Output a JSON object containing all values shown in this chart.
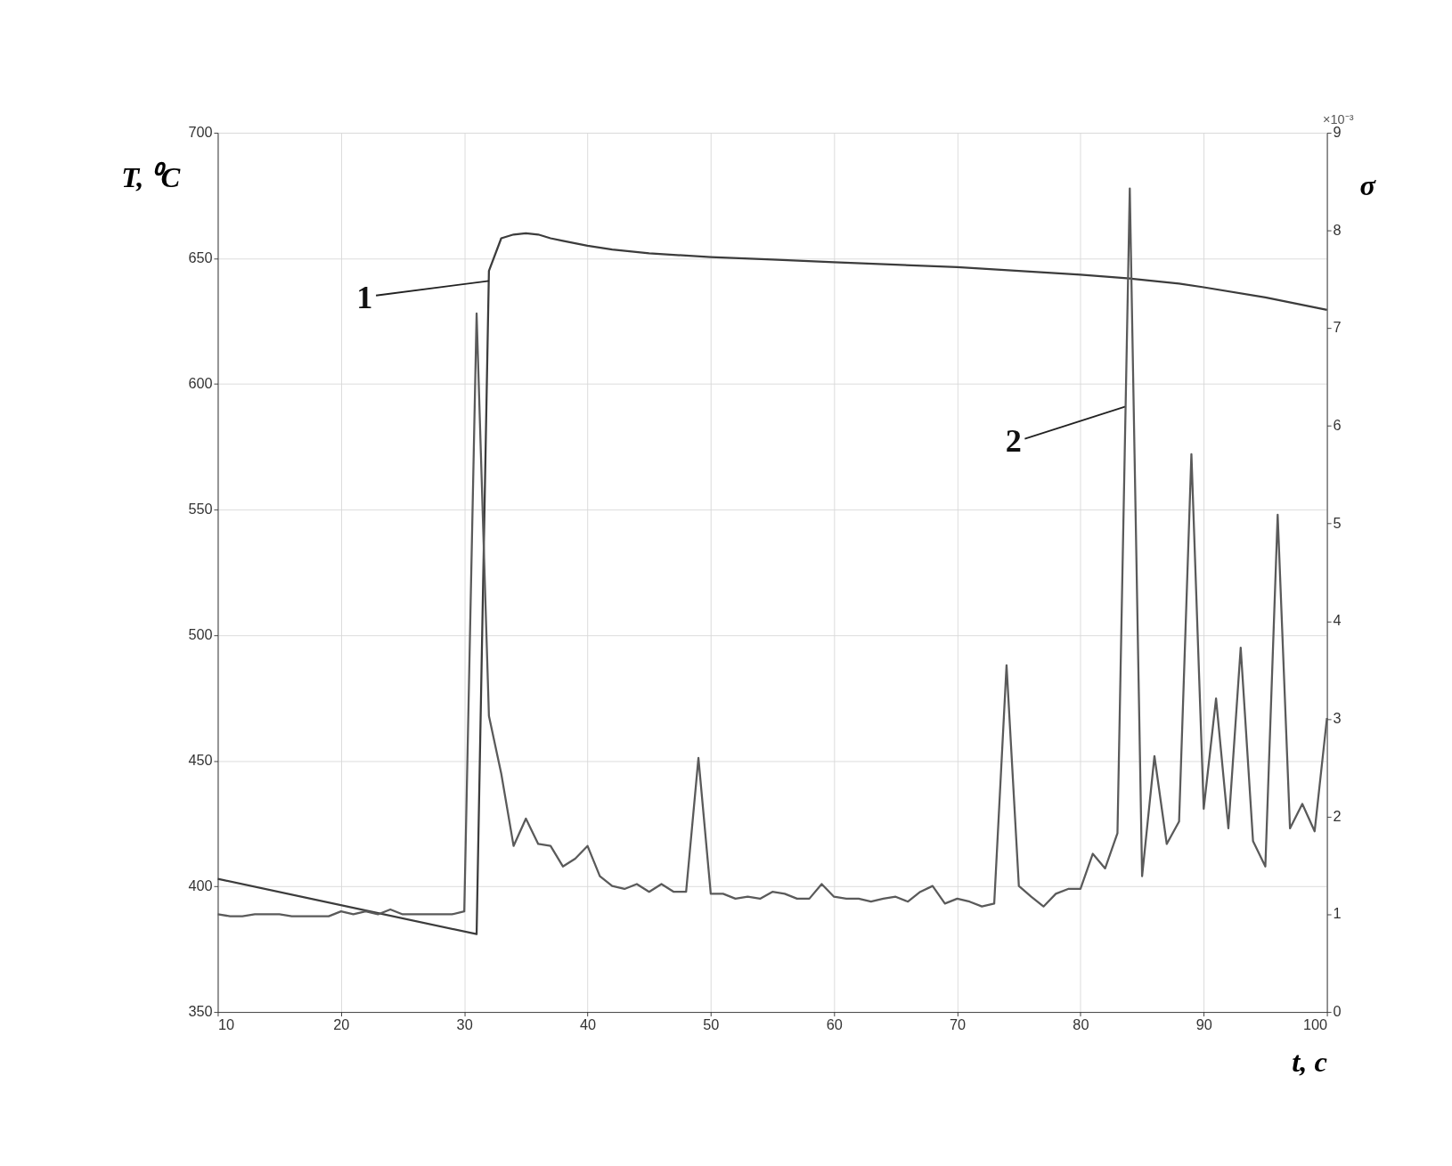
{
  "chart_data": {
    "type": "line",
    "xlabel": "t, c",
    "ylabel": "T, ⁰C",
    "y2label": "σ",
    "x": [
      10,
      11,
      12,
      13,
      14,
      15,
      16,
      17,
      18,
      19,
      20,
      21,
      22,
      23,
      24,
      25,
      26,
      27,
      28,
      29,
      30,
      31,
      32,
      33,
      34,
      35,
      36,
      37,
      38,
      39,
      40,
      41,
      42,
      43,
      44,
      45,
      46,
      47,
      48,
      49,
      50,
      51,
      52,
      53,
      54,
      55,
      56,
      57,
      58,
      59,
      60,
      61,
      62,
      63,
      64,
      65,
      66,
      67,
      68,
      69,
      70,
      71,
      72,
      73,
      74,
      75,
      76,
      77,
      78,
      79,
      80,
      81,
      82,
      83,
      84,
      85,
      86,
      87,
      88,
      89,
      90,
      91,
      92,
      93,
      94,
      95,
      96,
      97,
      98,
      99,
      100
    ],
    "xlim": [
      10,
      100
    ],
    "xticks": [
      10,
      20,
      30,
      40,
      50,
      60,
      70,
      80,
      90,
      100
    ],
    "ylim": [
      350,
      700
    ],
    "yticks": [
      350,
      400,
      450,
      500,
      550,
      600,
      650,
      700
    ],
    "y2lim": [
      0,
      9
    ],
    "y2ticks": [
      0,
      1,
      2,
      3,
      4,
      5,
      6,
      7,
      8,
      9
    ],
    "grid": true,
    "series": [
      {
        "color": "#3c3c3c",
        "x": [
          10,
          31,
          32,
          33,
          34,
          35,
          36,
          37,
          38,
          40,
          42,
          45,
          50,
          55,
          60,
          65,
          70,
          75,
          80,
          84,
          88,
          90,
          95,
          100
        ],
        "values": [
          403,
          381,
          645,
          658,
          659.5,
          660,
          659.5,
          658,
          657,
          655,
          653.5,
          652,
          650.5,
          649.5,
          648.5,
          647.5,
          646.5,
          645,
          643.5,
          642,
          640,
          638.5,
          634.5,
          629.5
        ]
      },
      {
        "color": "#5a5a5a",
        "axis": "y2",
        "values": [
          1.0,
          0.98,
          0.98,
          1.0,
          1.0,
          1.0,
          0.98,
          0.98,
          0.98,
          0.98,
          1.03,
          1.0,
          1.03,
          1.0,
          1.05,
          1.0,
          1.0,
          1.0,
          1.0,
          1.0,
          1.03,
          7.15,
          3.03,
          2.44,
          1.7,
          1.98,
          1.72,
          1.7,
          1.49,
          1.57,
          1.7,
          1.39,
          1.29,
          1.26,
          1.31,
          1.23,
          1.31,
          1.23,
          1.23,
          2.6,
          1.21,
          1.21,
          1.16,
          1.18,
          1.16,
          1.23,
          1.21,
          1.16,
          1.16,
          1.31,
          1.18,
          1.16,
          1.16,
          1.13,
          1.16,
          1.18,
          1.13,
          1.23,
          1.29,
          1.11,
          1.16,
          1.13,
          1.08,
          1.11,
          3.55,
          1.29,
          1.18,
          1.08,
          1.21,
          1.26,
          1.26,
          1.62,
          1.47,
          1.83,
          8.43,
          1.39,
          2.62,
          1.72,
          1.95,
          5.71,
          2.08,
          3.21,
          1.88,
          3.73,
          1.75,
          1.49,
          5.09,
          1.88,
          2.13,
          1.85,
          3.01
        ]
      }
    ],
    "annotations": [
      {
        "text": "1",
        "x": 32,
        "y": 641
      },
      {
        "text": "2",
        "x": 83.66,
        "y": 591
      },
      "×10⁻³"
    ]
  }
}
